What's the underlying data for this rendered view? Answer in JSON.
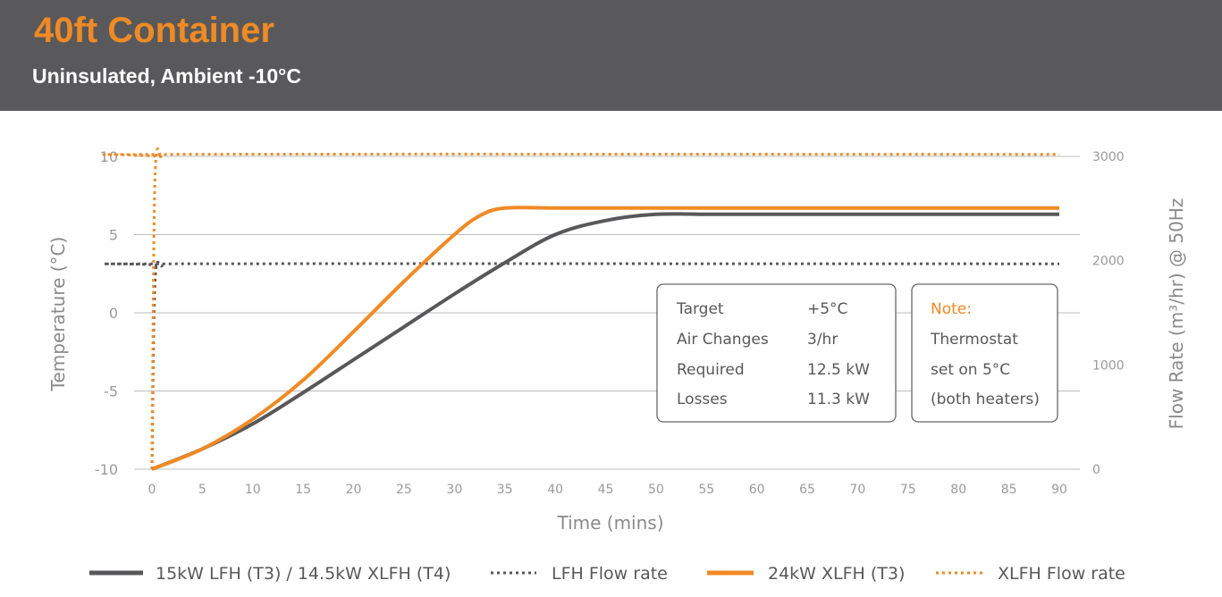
{
  "header": {
    "title": "40ft Container",
    "subtitle": "Uninsulated, Ambient -10°C"
  },
  "info_box": {
    "rows": [
      {
        "label": "Target",
        "value": "+5°C"
      },
      {
        "label": "Air Changes",
        "value": "3/hr"
      },
      {
        "label": "Required",
        "value": "12.5 kW"
      },
      {
        "label": "Losses",
        "value": "11.3 kW"
      }
    ]
  },
  "note_box": {
    "heading": "Note:",
    "lines": [
      "Thermostat",
      "set on 5°C",
      "(both heaters)"
    ]
  },
  "colors": {
    "header_bg": "#59595b",
    "accent_orange": "#f08a24",
    "series_grey": "#58585a",
    "grid": "#bdbdbd",
    "axis_text": "#9a9a9a"
  },
  "chart_data": {
    "type": "line",
    "xlabel": "Time (mins)",
    "ylabel": "Temperature (°C)",
    "y2label": "Flow Rate (m³/hr) @ 50Hz",
    "xlim": [
      0,
      90
    ],
    "ylim": [
      -10,
      10
    ],
    "y2lim": [
      0,
      3000
    ],
    "x_ticks": [
      0,
      5,
      10,
      15,
      20,
      25,
      30,
      35,
      40,
      45,
      50,
      55,
      60,
      65,
      70,
      75,
      80,
      85,
      90
    ],
    "y_ticks": [
      10,
      5,
      0,
      -5,
      -10
    ],
    "y2_ticks": [
      3000,
      2000,
      1000,
      0
    ],
    "grid": true,
    "legend_position": "bottom",
    "series": [
      {
        "name": "15kW LFH (T3) / 14.5kW XLFH (T4)",
        "axis": "left",
        "style": "solid",
        "color": "#58585a",
        "x": [
          0,
          5,
          10,
          15,
          20,
          25,
          30,
          35,
          40,
          45,
          50,
          55,
          60,
          65,
          70,
          75,
          80,
          85,
          90
        ],
        "y": [
          -10,
          -8.7,
          -7.1,
          -5.1,
          -3.0,
          -0.9,
          1.2,
          3.2,
          5.0,
          5.9,
          6.3,
          6.3,
          6.3,
          6.3,
          6.3,
          6.3,
          6.3,
          6.3,
          6.3
        ]
      },
      {
        "name": "LFH Flow rate",
        "axis": "right",
        "style": "dotted",
        "color": "#58585a",
        "x": [
          0,
          0.3,
          1,
          2,
          90
        ],
        "y": [
          0,
          1800,
          1950,
          1970,
          1970
        ]
      },
      {
        "name": "24kW XLFH (T3)",
        "axis": "left",
        "style": "solid",
        "color": "#f08a24",
        "x": [
          0,
          5,
          10,
          15,
          20,
          25,
          30,
          32.5,
          35,
          40,
          50,
          60,
          70,
          80,
          90
        ],
        "y": [
          -10,
          -8.7,
          -6.8,
          -4.3,
          -1.2,
          2.0,
          5.0,
          6.2,
          6.7,
          6.7,
          6.7,
          6.7,
          6.7,
          6.7,
          6.7
        ]
      },
      {
        "name": "XLFH Flow rate",
        "axis": "right",
        "style": "dotted",
        "color": "#f08a24",
        "x": [
          0,
          0.3,
          1,
          2,
          90
        ],
        "y": [
          0,
          2800,
          2990,
          3020,
          3020
        ]
      }
    ]
  }
}
